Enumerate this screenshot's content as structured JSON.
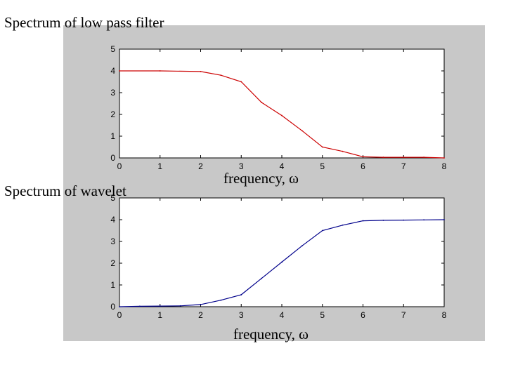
{
  "chart_data": [
    {
      "type": "line",
      "title": "Spectrum of low pass filter",
      "xlabel": "frequency, ω",
      "ylabel": "",
      "xlim": [
        0,
        8
      ],
      "ylim": [
        0,
        5
      ],
      "xticks": [
        "0",
        "1",
        "2",
        "3",
        "4",
        "5",
        "6",
        "7",
        "8"
      ],
      "yticks": [
        "0",
        "1",
        "2",
        "3",
        "4",
        "5"
      ],
      "color": "#cc0000",
      "series": [
        {
          "name": "low pass",
          "x": [
            0,
            1,
            2,
            2.5,
            3,
            3.5,
            4,
            4.5,
            5,
            5.5,
            6,
            6.5,
            7,
            7.5,
            8
          ],
          "y": [
            4,
            4,
            3.97,
            3.8,
            3.5,
            2.55,
            1.95,
            1.25,
            0.5,
            0.3,
            0.05,
            0.03,
            0.03,
            0.03,
            0
          ]
        }
      ]
    },
    {
      "type": "line",
      "title": "Spectrum of wavelet",
      "xlabel": "frequency, ω",
      "ylabel": "",
      "xlim": [
        0,
        8
      ],
      "ylim": [
        0,
        5
      ],
      "xticks": [
        "0",
        "1",
        "2",
        "3",
        "4",
        "5",
        "6",
        "7",
        "8"
      ],
      "yticks": [
        "0",
        "1",
        "2",
        "3",
        "4",
        "5"
      ],
      "color": "#00008b",
      "series": [
        {
          "name": "wavelet",
          "x": [
            0,
            0.5,
            1,
            1.5,
            2,
            2.5,
            3,
            3.5,
            4,
            4.5,
            5,
            5.5,
            6,
            6.5,
            7,
            7.5,
            8
          ],
          "y": [
            0,
            0.02,
            0.03,
            0.04,
            0.1,
            0.3,
            0.55,
            1.3,
            2.05,
            2.8,
            3.5,
            3.75,
            3.95,
            3.97,
            3.98,
            3.99,
            4.0
          ]
        }
      ]
    }
  ]
}
